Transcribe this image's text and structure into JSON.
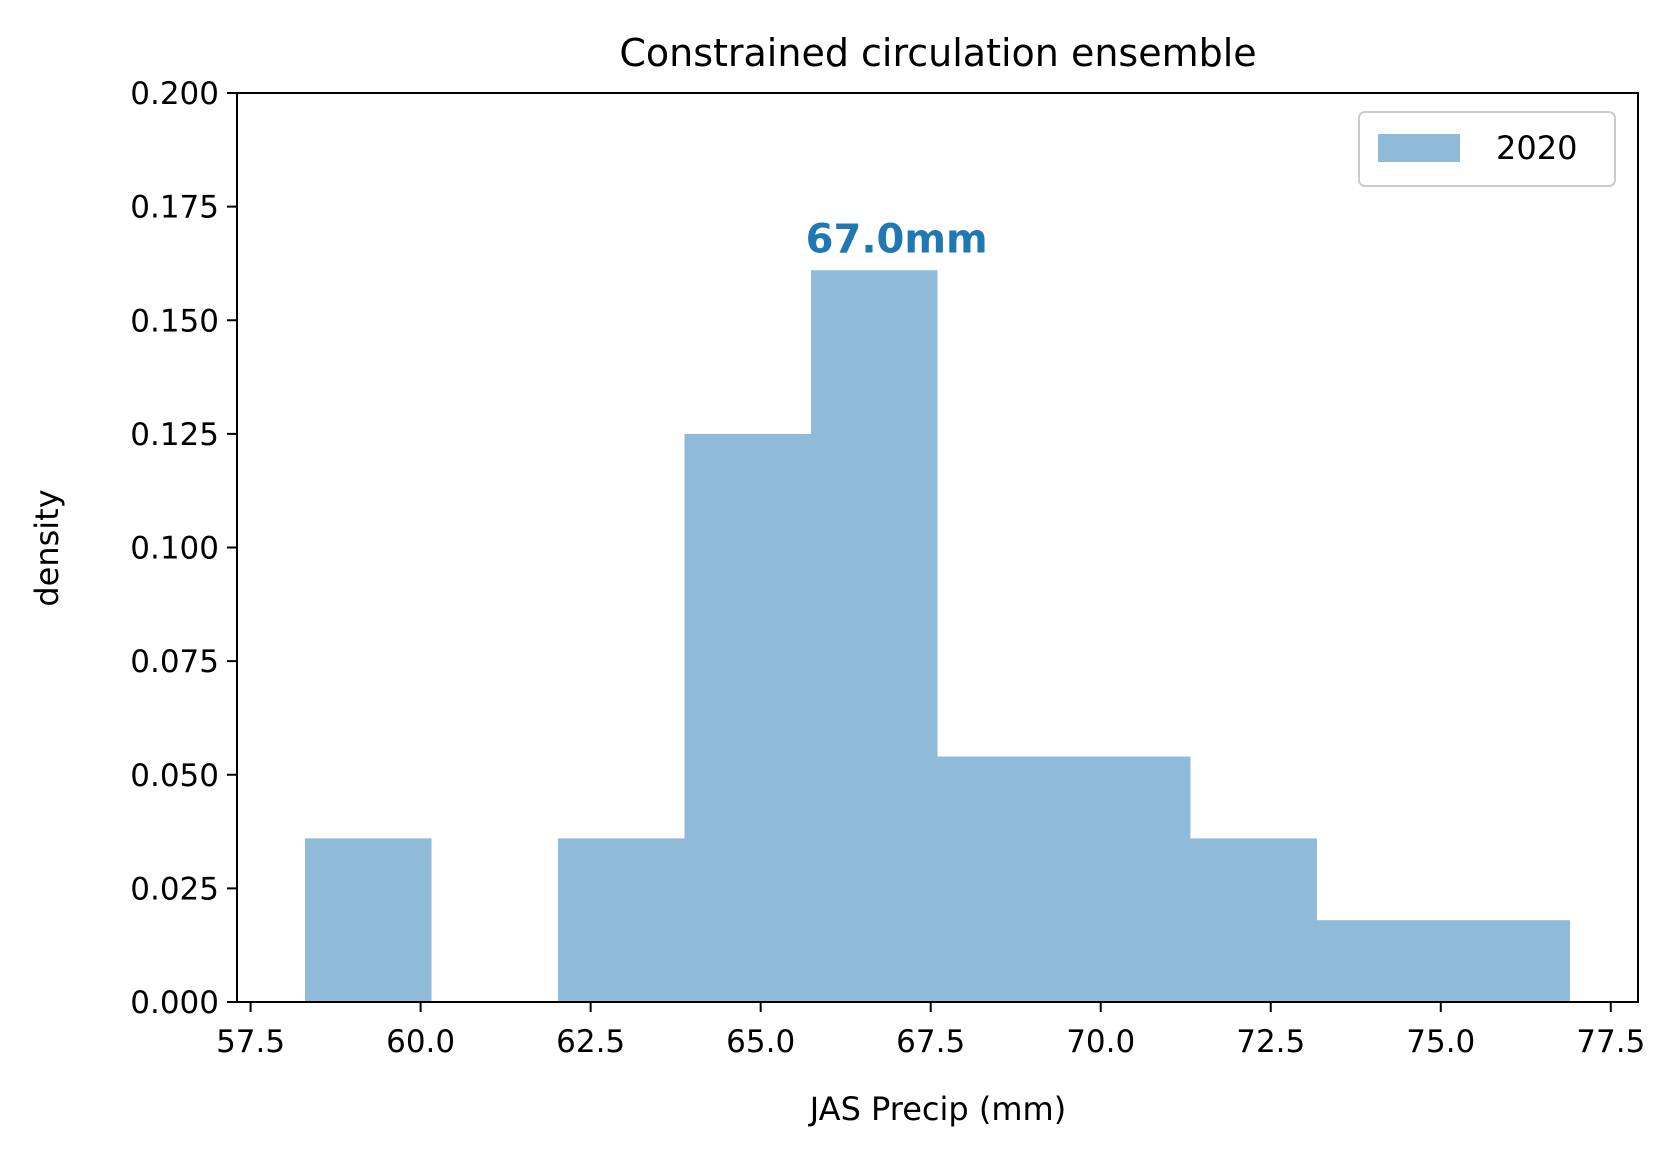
{
  "chart_data": {
    "type": "bar",
    "title": "Constrained circulation ensemble",
    "xlabel": "JAS Precip (mm)",
    "ylabel": "density",
    "xlim": [
      57.3,
      77.9
    ],
    "ylim": [
      0,
      0.2
    ],
    "xticks": [
      "57.5",
      "60.0",
      "62.5",
      "65.0",
      "67.5",
      "70.0",
      "72.5",
      "75.0",
      "77.5"
    ],
    "yticks": [
      "0.000",
      "0.025",
      "0.050",
      "0.075",
      "0.100",
      "0.125",
      "0.150",
      "0.175",
      "0.200"
    ],
    "series": [
      {
        "name": "2020",
        "color": "#1f77b4",
        "alpha": 0.5,
        "bins": [
          {
            "x0": 58.3,
            "x1": 60.16,
            "value": 0.036
          },
          {
            "x0": 60.16,
            "x1": 62.02,
            "value": 0.0
          },
          {
            "x0": 62.02,
            "x1": 63.88,
            "value": 0.036
          },
          {
            "x0": 63.88,
            "x1": 65.74,
            "value": 0.125
          },
          {
            "x0": 65.74,
            "x1": 67.6,
            "value": 0.161
          },
          {
            "x0": 67.6,
            "x1": 69.46,
            "value": 0.054
          },
          {
            "x0": 69.46,
            "x1": 71.32,
            "value": 0.054
          },
          {
            "x0": 71.32,
            "x1": 73.18,
            "value": 0.036
          },
          {
            "x0": 73.18,
            "x1": 75.04,
            "value": 0.018
          },
          {
            "x0": 75.04,
            "x1": 76.9,
            "value": 0.018
          }
        ]
      }
    ],
    "annotation": {
      "text": "67.0mm",
      "x": 67.0,
      "y": 0.161,
      "color": "#1f77b4"
    },
    "legend": {
      "position": "top-right",
      "entries": [
        "2020"
      ]
    },
    "grid": false
  }
}
